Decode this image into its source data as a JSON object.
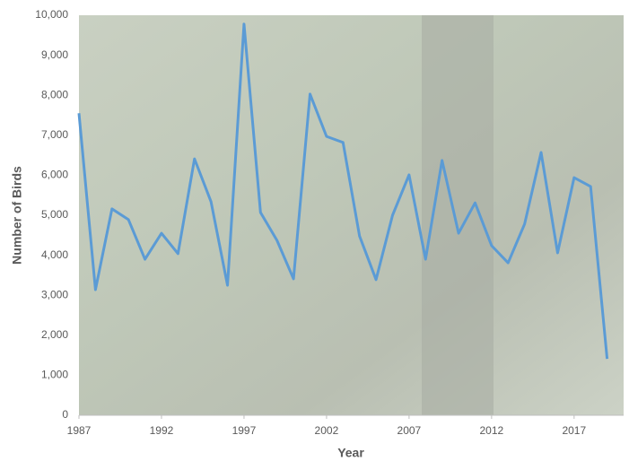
{
  "chart_data": {
    "type": "line",
    "x_label": "Year",
    "y_label": "Number of Birds",
    "x": [
      1987,
      1988,
      1989,
      1990,
      1991,
      1992,
      1993,
      1994,
      1995,
      1996,
      1997,
      1998,
      1999,
      2000,
      2001,
      2002,
      2003,
      2004,
      2005,
      2006,
      2007,
      2008,
      2009,
      2010,
      2011,
      2012,
      2013,
      2014,
      2015,
      2016,
      2017,
      2018,
      2019
    ],
    "series": [
      {
        "name": "Number of Birds",
        "color": "#5b9bd5",
        "values": [
          7550,
          3140,
          5160,
          4890,
          3900,
          4550,
          4040,
          6410,
          5340,
          3250,
          9780,
          5070,
          4370,
          3410,
          8030,
          6970,
          6820,
          4480,
          3390,
          5000,
          6010,
          3900,
          6370,
          4550,
          5310,
          4240,
          3810,
          4780,
          6570,
          4060,
          5940,
          5720,
          1410
        ]
      }
    ],
    "xlim": [
      1987,
      2020
    ],
    "xticks": [
      1987,
      1992,
      1997,
      2002,
      2007,
      2012,
      2017
    ],
    "ylim": [
      0,
      10000
    ],
    "yticks": [
      0,
      {
        "value": 1000,
        "label": "1,000"
      },
      {
        "value": 2000,
        "label": "2,000"
      },
      {
        "value": 3000,
        "label": "3,000"
      },
      {
        "value": 4000,
        "label": "4,000"
      },
      {
        "value": 5000,
        "label": "5,000"
      },
      {
        "value": 6000,
        "label": "6,000"
      },
      {
        "value": 7000,
        "label": "7,000"
      },
      {
        "value": 8000,
        "label": "8,000"
      },
      {
        "value": 9000,
        "label": "9,000"
      },
      {
        "value": 10000,
        "label": "10,000"
      }
    ],
    "grid": false
  }
}
